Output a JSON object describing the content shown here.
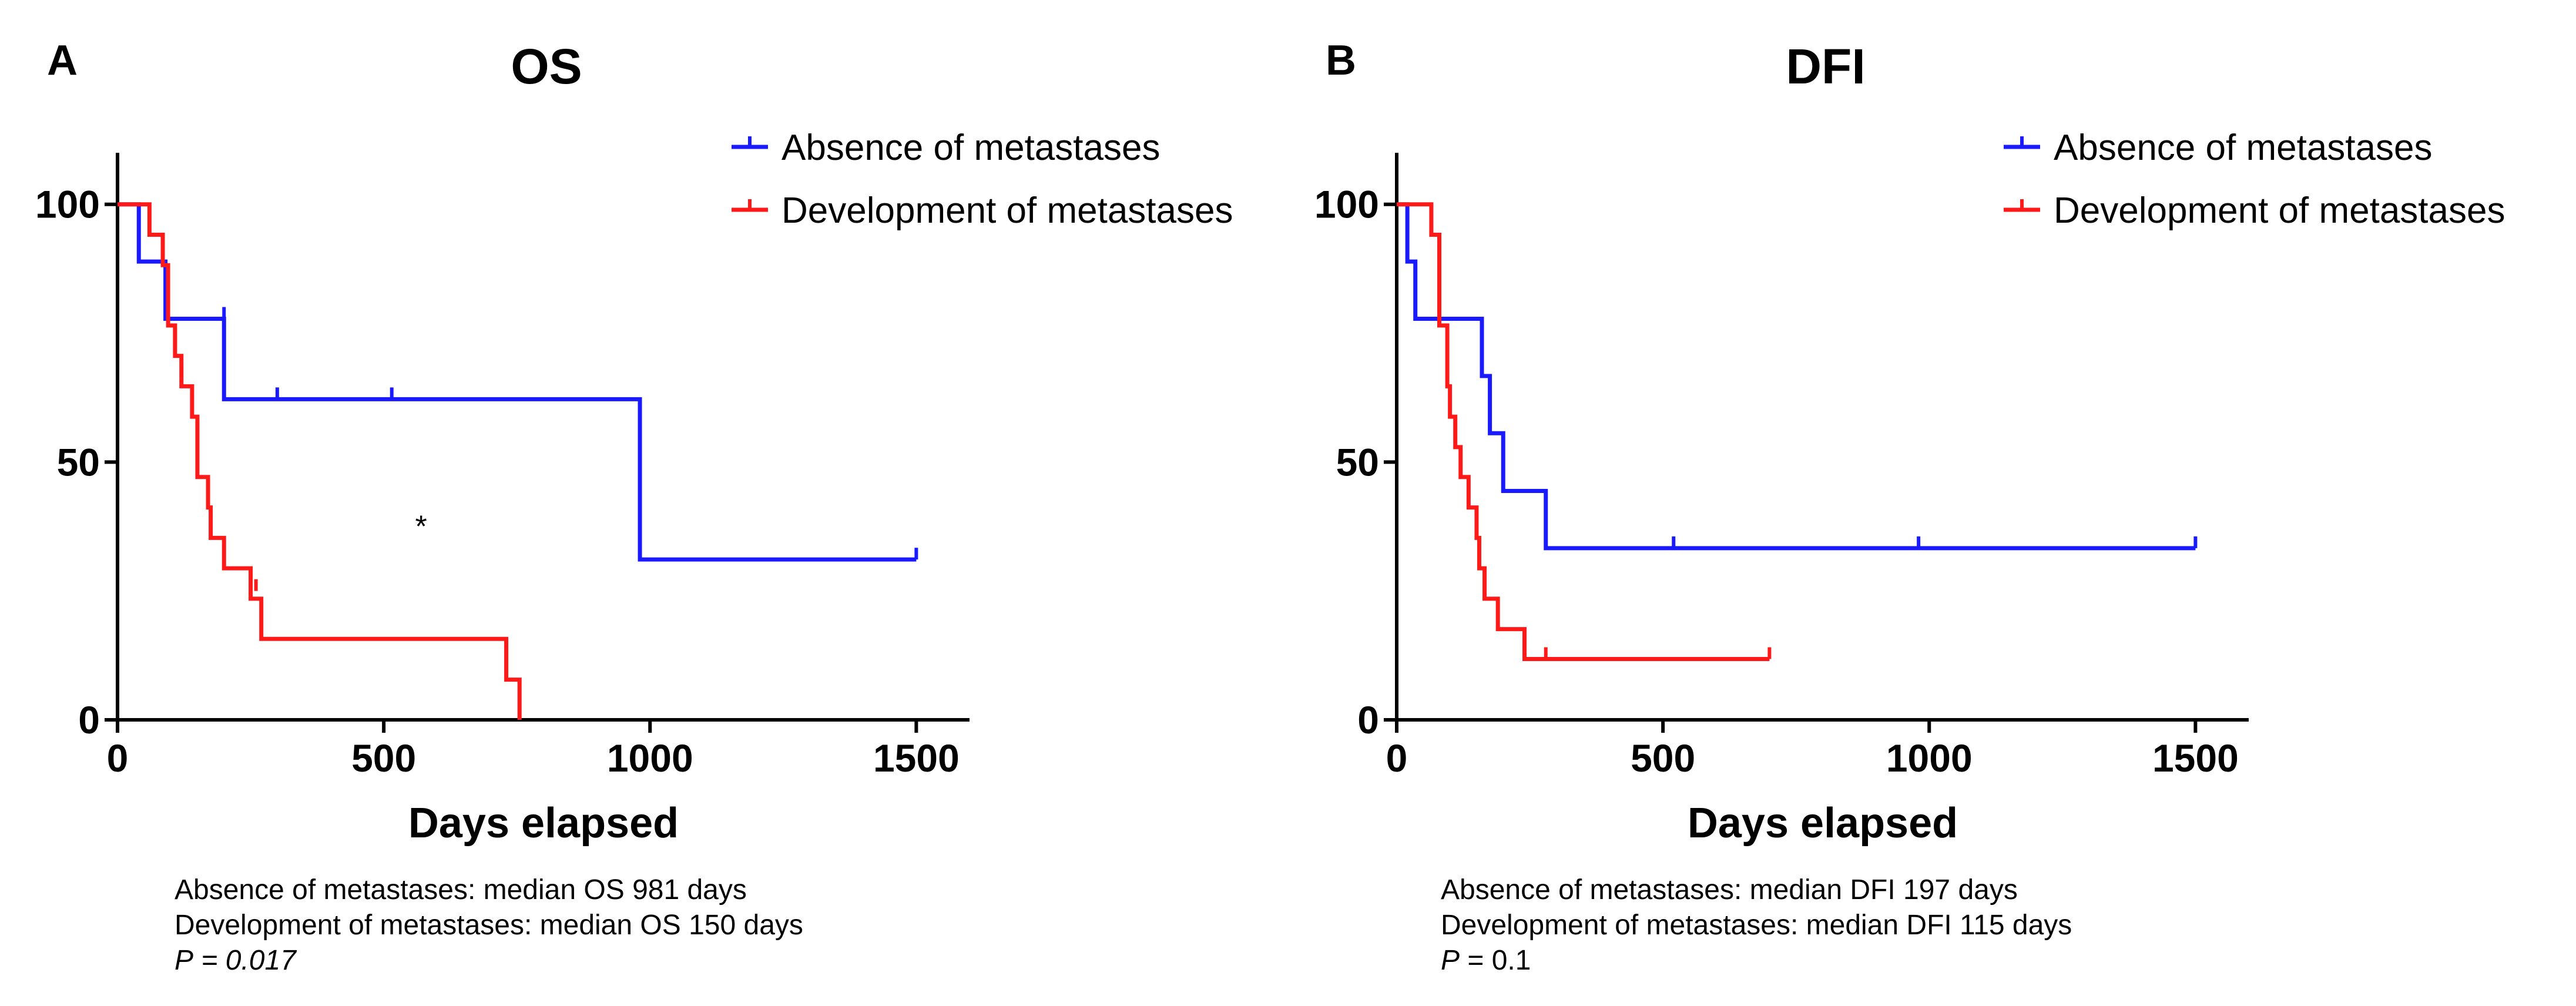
{
  "chart_data": [
    {
      "type": "line",
      "subtype": "kaplan-meier",
      "panel_letter": "A",
      "title": "OS",
      "xlabel": "Days elapsed",
      "ylabel": "",
      "xlim": [
        0,
        1600
      ],
      "ylim": [
        0,
        110
      ],
      "xticks": [
        0,
        500,
        1000,
        1500
      ],
      "xtick_labels": [
        "0",
        "500",
        "1000",
        "1500"
      ],
      "yticks": [
        0,
        50,
        100
      ],
      "ytick_labels": [
        "0",
        "50",
        "100"
      ],
      "legend_position": "top-right",
      "annotation": "*",
      "annotation_at": [
        570,
        38
      ],
      "series": [
        {
          "name": "Absence of metastases",
          "color": "#1a1aff",
          "steps": [
            [
              0,
              100
            ],
            [
              40,
              88.9
            ],
            [
              90,
              77.8
            ],
            [
              200,
              62.2
            ],
            [
              981,
              31.1
            ],
            [
              1500,
              31.1
            ]
          ],
          "censored": [
            [
              200,
              77.8
            ],
            [
              300,
              62.2
            ],
            [
              515,
              62.2
            ],
            [
              1500,
              31.1
            ]
          ]
        },
        {
          "name": "Development of metastases",
          "color": "#ff1a1a",
          "steps": [
            [
              0,
              100
            ],
            [
              55,
              100
            ],
            [
              60,
              94.1
            ],
            [
              85,
              88.2
            ],
            [
              95,
              76.5
            ],
            [
              108,
              70.6
            ],
            [
              120,
              64.7
            ],
            [
              140,
              58.8
            ],
            [
              150,
              47.1
            ],
            [
              170,
              41.2
            ],
            [
              175,
              35.3
            ],
            [
              200,
              29.4
            ],
            [
              250,
              23.5
            ],
            [
              270,
              15.7
            ],
            [
              730,
              7.8
            ],
            [
              755,
              0
            ]
          ],
          "censored": [
            [
              260,
              25
            ]
          ]
        }
      ],
      "stats_lines": [
        "Absence of metastases: median OS 981 days",
        "Development of metastases: median OS 150 days"
      ],
      "p_label": "P",
      "p_value": "= 0.017"
    },
    {
      "type": "line",
      "subtype": "kaplan-meier",
      "panel_letter": "B",
      "title": "DFI",
      "xlabel": "Days elapsed",
      "ylabel": "",
      "xlim": [
        0,
        1600
      ],
      "ylim": [
        0,
        110
      ],
      "xticks": [
        0,
        500,
        1000,
        1500
      ],
      "xtick_labels": [
        "0",
        "500",
        "1000",
        "1500"
      ],
      "yticks": [
        0,
        50,
        100
      ],
      "ytick_labels": [
        "0",
        "50",
        "100"
      ],
      "legend_position": "top-right",
      "series": [
        {
          "name": "Absence of metastases",
          "color": "#1a1aff",
          "steps": [
            [
              0,
              100
            ],
            [
              20,
              88.9
            ],
            [
              35,
              77.8
            ],
            [
              160,
              66.7
            ],
            [
              175,
              55.6
            ],
            [
              200,
              44.4
            ],
            [
              280,
              33.3
            ],
            [
              1500,
              33.3
            ]
          ],
          "censored": [
            [
              520,
              33.3
            ],
            [
              980,
              33.3
            ],
            [
              1500,
              33.3
            ]
          ]
        },
        {
          "name": "Development of metastases",
          "color": "#ff1a1a",
          "steps": [
            [
              0,
              100
            ],
            [
              50,
              100
            ],
            [
              65,
              94.1
            ],
            [
              80,
              76.5
            ],
            [
              95,
              64.7
            ],
            [
              100,
              58.8
            ],
            [
              110,
              52.9
            ],
            [
              120,
              47.1
            ],
            [
              135,
              41.2
            ],
            [
              150,
              35.3
            ],
            [
              155,
              29.4
            ],
            [
              165,
              23.5
            ],
            [
              190,
              17.6
            ],
            [
              240,
              11.8
            ],
            [
              700,
              11.8
            ]
          ],
          "censored": [
            [
              280,
              11.8
            ],
            [
              700,
              11.8
            ]
          ]
        }
      ],
      "stats_lines": [
        "Absence of metastases: median DFI 197 days",
        "Development of metastases: median DFI 115 days"
      ],
      "p_label": "P",
      "p_value": "= 0.1"
    }
  ]
}
